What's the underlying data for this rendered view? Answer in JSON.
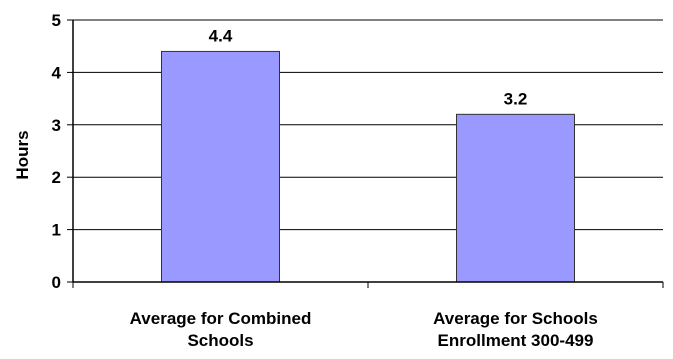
{
  "chart_data": {
    "type": "bar",
    "title": "",
    "xlabel": "",
    "ylabel": "Hours",
    "ylim": [
      0,
      5
    ],
    "yticks": [
      0,
      1,
      2,
      3,
      4,
      5
    ],
    "grid": true,
    "legend": "none",
    "bar_color": "#9999ff",
    "bar_outline": "#333333",
    "categories": [
      [
        "Average for Combined",
        "Schools"
      ],
      [
        "Average for Schools",
        "Enrollment 300-499"
      ]
    ],
    "values": [
      4.4,
      3.2
    ],
    "data_labels": [
      "4.4",
      "3.2"
    ]
  }
}
